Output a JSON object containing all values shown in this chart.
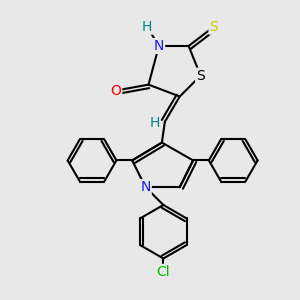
{
  "background_color": "#e8e8e8",
  "atom_colors": {
    "N": "#1a1aff",
    "O": "#ff0000",
    "S_yellow": "#cccc00",
    "S_ring": "#000000",
    "Cl": "#00bb00",
    "H": "#008888",
    "C": "#000000"
  },
  "bond_color": "#000000",
  "bond_width": 1.5,
  "dbo": 0.12,
  "font_size_atoms": 10
}
